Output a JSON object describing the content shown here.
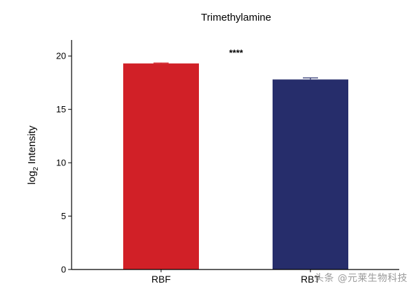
{
  "chart_data": {
    "type": "bar",
    "title": "Trimethylamine",
    "xlabel": "",
    "ylabel_main": "log",
    "ylabel_sub": "2",
    "ylabel_rest": " Intensity",
    "categories": [
      "RBF",
      "RBT"
    ],
    "values": [
      19.3,
      17.8
    ],
    "errors": [
      0.05,
      0.15
    ],
    "ylim": [
      0,
      21.5
    ],
    "yticks": [
      0,
      5,
      10,
      15,
      20
    ],
    "colors": [
      "#d12027",
      "#262d6b"
    ],
    "significance": "****",
    "grid": false
  },
  "watermark": "头条 @元莱生物科技"
}
